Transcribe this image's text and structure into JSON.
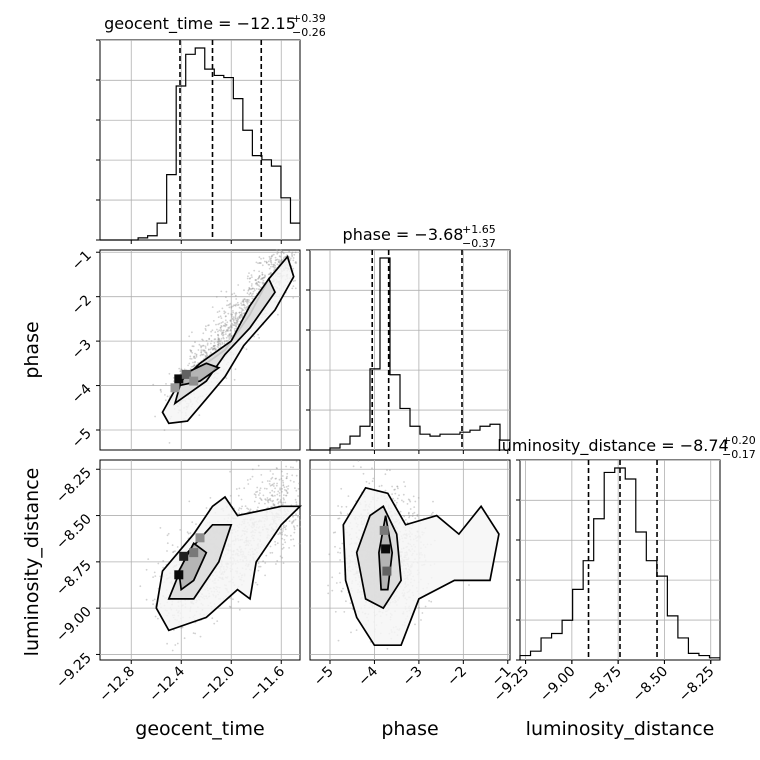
{
  "chart_data": {
    "type": "corner",
    "parameters": [
      {
        "name": "geocent_time",
        "axis_label": "geocent_time",
        "title": {
          "prefix": "geocent_time = ",
          "median": "−12.15",
          "plus": "+0.39",
          "minus": "−0.26"
        },
        "range": [
          -13.05,
          -11.45
        ],
        "ticks": [
          -12.8,
          -12.4,
          -12.0,
          -11.6
        ],
        "tick_labels": [
          "−12.8",
          "−12.4",
          "−12.0",
          "−11.6"
        ],
        "quantiles": [
          -12.41,
          -12.15,
          -11.76
        ],
        "histogram": [
          0,
          0,
          0,
          0,
          1,
          2,
          8,
          31,
          73,
          88,
          91,
          81,
          78,
          77,
          67,
          52,
          40,
          38,
          35,
          20,
          8
        ]
      },
      {
        "name": "phase",
        "axis_label": "phase",
        "title": {
          "prefix": "phase = ",
          "median": "−3.68",
          "plus": "+1.65",
          "minus": "−0.37"
        },
        "range": [
          -5.45,
          -0.95
        ],
        "ticks": [
          -5,
          -4,
          -3,
          -2,
          -1
        ],
        "tick_labels": [
          "−5",
          "−4",
          "−3",
          "−2",
          "−1"
        ],
        "quantiles": [
          -4.05,
          -3.68,
          -2.03
        ],
        "histogram": [
          0,
          0,
          1,
          3,
          7,
          12,
          41,
          97,
          38,
          21,
          12,
          8,
          7,
          8,
          8,
          9,
          10,
          12,
          13,
          5
        ]
      },
      {
        "name": "luminosity_distance",
        "axis_label": "luminosity_distance",
        "title": {
          "prefix": "luminosity_distance = ",
          "median": "−8.74",
          "plus": "+0.20",
          "minus": "−0.17"
        },
        "range": [
          -9.28,
          -8.2
        ],
        "ticks": [
          -9.25,
          -9.0,
          -8.75,
          -8.5,
          -8.25
        ],
        "tick_labels": [
          "−9.25",
          "−9.00",
          "−8.75",
          "−8.50",
          "−8.25"
        ],
        "quantiles": [
          -8.91,
          -8.74,
          -8.54
        ],
        "histogram": [
          2,
          4,
          10,
          12,
          18,
          32,
          45,
          64,
          85,
          87,
          82,
          58,
          45,
          38,
          20,
          10,
          3,
          2,
          1
        ]
      }
    ],
    "grid": true,
    "colors": {
      "line": "#000000",
      "scatter": "#999999",
      "grid": "#b0b0b0",
      "fill_dark": "#111111",
      "fill_light": "#e8e8e8"
    }
  }
}
